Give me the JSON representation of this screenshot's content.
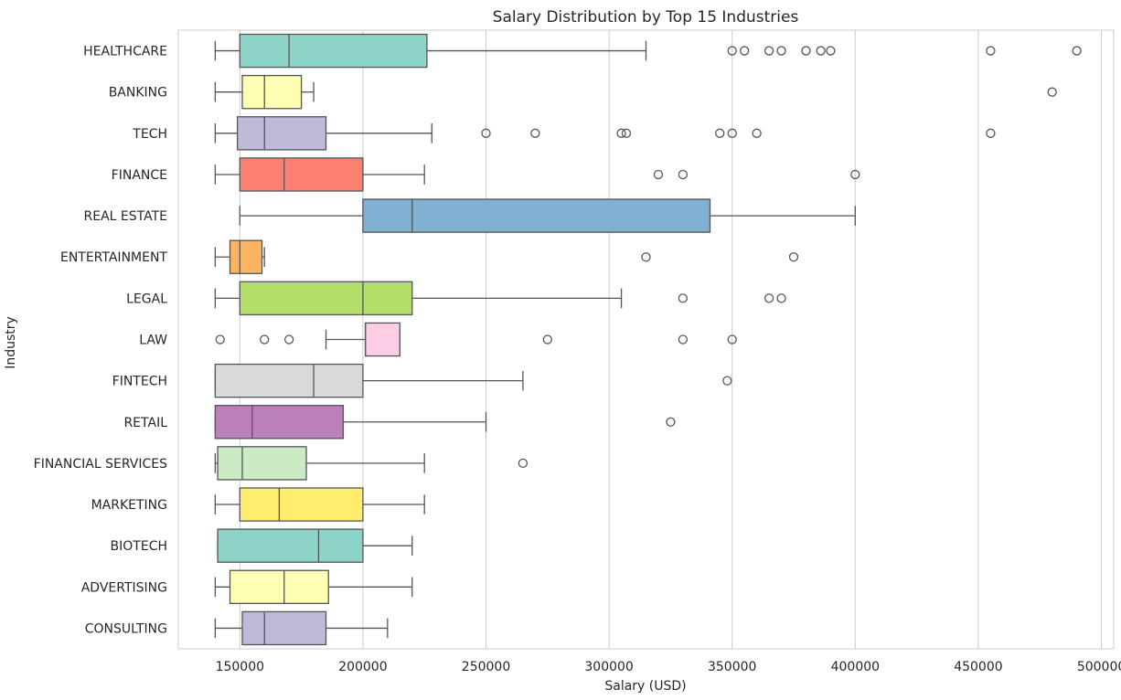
{
  "chart_data": {
    "type": "boxplot",
    "title": "Salary Distribution by Top 15 Industries",
    "xlabel": "Salary (USD)",
    "ylabel": "Industry",
    "xlim": [
      125000,
      505000
    ],
    "xticks": [
      150000,
      200000,
      250000,
      300000,
      350000,
      400000,
      450000,
      500000
    ],
    "grid": "vertical",
    "categories": [
      "HEALTHCARE",
      "BANKING",
      "TECH",
      "FINANCE",
      "REAL ESTATE",
      "ENTERTAINMENT",
      "LEGAL",
      "LAW",
      "FINTECH",
      "RETAIL",
      "FINANCIAL SERVICES",
      "MARKETING",
      "BIOTECH",
      "ADVERTISING",
      "CONSULTING"
    ],
    "series": [
      {
        "category": "HEALTHCARE",
        "color": "#8dd3c7",
        "whisker_low": 140000,
        "q1": 150000,
        "median": 170000,
        "q3": 226000,
        "whisker_high": 315000,
        "outliers": [
          350000,
          355000,
          365000,
          370000,
          380000,
          386000,
          390000,
          455000,
          490000
        ]
      },
      {
        "category": "BANKING",
        "color": "#ffffb3",
        "whisker_low": 140000,
        "q1": 151000,
        "median": 160000,
        "q3": 175000,
        "whisker_high": 180000,
        "outliers": [
          480000
        ]
      },
      {
        "category": "TECH",
        "color": "#bebada",
        "whisker_low": 140000,
        "q1": 149000,
        "median": 160000,
        "q3": 185000,
        "whisker_high": 228000,
        "outliers": [
          250000,
          270000,
          305000,
          307000,
          345000,
          350000,
          360000,
          455000
        ]
      },
      {
        "category": "FINANCE",
        "color": "#fb8072",
        "whisker_low": 140000,
        "q1": 150000,
        "median": 168000,
        "q3": 200000,
        "whisker_high": 225000,
        "outliers": [
          320000,
          330000,
          400000
        ]
      },
      {
        "category": "REAL ESTATE",
        "color": "#80b1d3",
        "whisker_low": 150000,
        "q1": 200000,
        "median": 220000,
        "q3": 341000,
        "whisker_high": 400000,
        "outliers": []
      },
      {
        "category": "ENTERTAINMENT",
        "color": "#fdb462",
        "whisker_low": 140000,
        "q1": 146000,
        "median": 150000,
        "q3": 159000,
        "whisker_high": 160000,
        "outliers": [
          315000,
          375000
        ]
      },
      {
        "category": "LEGAL",
        "color": "#b3de69",
        "whisker_low": 140000,
        "q1": 150000,
        "median": 200000,
        "q3": 220000,
        "whisker_high": 305000,
        "outliers": [
          330000,
          365000,
          370000
        ]
      },
      {
        "category": "LAW",
        "color": "#fccde5",
        "whisker_low": 185000,
        "q1": 201000,
        "median": 201000,
        "q3": 215000,
        "whisker_high": 215000,
        "outliers": [
          142000,
          160000,
          170000,
          275000,
          330000,
          350000
        ]
      },
      {
        "category": "FINTECH",
        "color": "#d9d9d9",
        "whisker_low": 140000,
        "q1": 140000,
        "median": 180000,
        "q3": 200000,
        "whisker_high": 265000,
        "outliers": [
          348000
        ]
      },
      {
        "category": "RETAIL",
        "color": "#bc80bd",
        "whisker_low": 140000,
        "q1": 140000,
        "median": 155000,
        "q3": 192000,
        "whisker_high": 250000,
        "outliers": [
          325000
        ]
      },
      {
        "category": "FINANCIAL SERVICES",
        "color": "#ccebc5",
        "whisker_low": 140000,
        "q1": 141000,
        "median": 151000,
        "q3": 177000,
        "whisker_high": 225000,
        "outliers": [
          265000
        ]
      },
      {
        "category": "MARKETING",
        "color": "#ffed6f",
        "whisker_low": 140000,
        "q1": 150000,
        "median": 166000,
        "q3": 200000,
        "whisker_high": 225000,
        "outliers": []
      },
      {
        "category": "BIOTECH",
        "color": "#8dd3c7",
        "whisker_low": 141000,
        "q1": 141000,
        "median": 182000,
        "q3": 200000,
        "whisker_high": 220000,
        "outliers": []
      },
      {
        "category": "ADVERTISING",
        "color": "#ffffb3",
        "whisker_low": 140000,
        "q1": 146000,
        "median": 168000,
        "q3": 186000,
        "whisker_high": 220000,
        "outliers": []
      },
      {
        "category": "CONSULTING",
        "color": "#bebada",
        "whisker_low": 140000,
        "q1": 151000,
        "median": 160000,
        "q3": 185000,
        "whisker_high": 210000,
        "outliers": []
      }
    ]
  }
}
